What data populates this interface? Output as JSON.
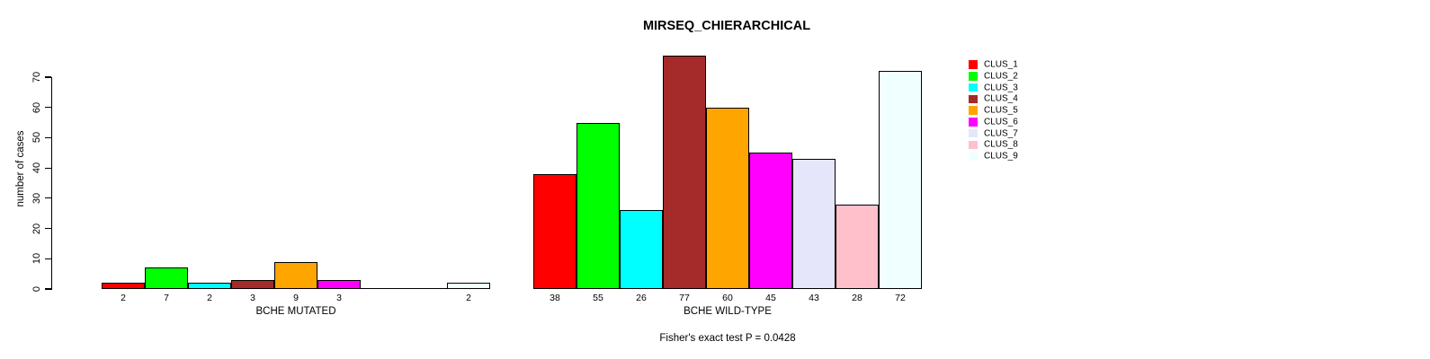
{
  "chart_data": {
    "type": "bar",
    "title": "MIRSEQ_CHIERARCHICAL",
    "ylabel": "number of cases",
    "xlabel": "",
    "ylim": [
      0,
      70
    ],
    "yticks": [
      0,
      10,
      20,
      30,
      40,
      50,
      60,
      70
    ],
    "grid": false,
    "legend_position": "right",
    "clusters": [
      "CLUS_1",
      "CLUS_2",
      "CLUS_3",
      "CLUS_4",
      "CLUS_5",
      "CLUS_6",
      "CLUS_7",
      "CLUS_8",
      "CLUS_9"
    ],
    "cluster_colors": [
      "#FF0000",
      "#00FF00",
      "#00FFFF",
      "#A52A2A",
      "#FFA500",
      "#FF00FF",
      "#E6E6FA",
      "#FFC0CB",
      "#F0FFFF"
    ],
    "groups": [
      {
        "label": "BCHE MUTATED",
        "values": [
          2,
          7,
          2,
          3,
          9,
          3,
          0,
          0,
          2
        ]
      },
      {
        "label": "BCHE WILD-TYPE",
        "values": [
          38,
          55,
          26,
          77,
          60,
          45,
          43,
          28,
          72
        ]
      }
    ],
    "annotation": "Fisher's exact test P = 0.0428",
    "legend": [
      {
        "label": "CLUS_1",
        "color": "#FF0000"
      },
      {
        "label": "CLUS_2",
        "color": "#00FF00"
      },
      {
        "label": "CLUS_3",
        "color": "#00FFFF"
      },
      {
        "label": "CLUS_4",
        "color": "#A52A2A"
      },
      {
        "label": "CLUS_5",
        "color": "#FFA500"
      },
      {
        "label": "CLUS_6",
        "color": "#FF00FF"
      },
      {
        "label": "CLUS_7",
        "color": "#E6E6FA"
      },
      {
        "label": "CLUS_8",
        "color": "#FFC0CB"
      },
      {
        "label": "CLUS_9",
        "color": "#F0FFFF"
      }
    ]
  }
}
